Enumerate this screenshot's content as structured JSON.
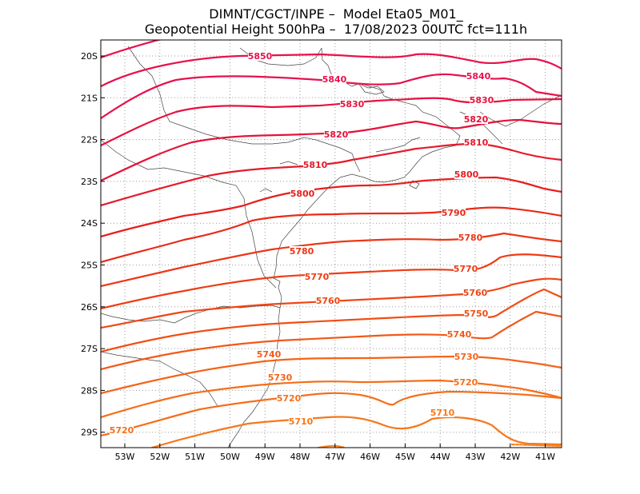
{
  "title": {
    "line1": "DIMNT/CGCT/INPE –  Model Eta05_M01_",
    "line2": "Geopotential Height 500hPa –  17/08/2023 00UTC fct=111h"
  },
  "map": {
    "lat_labels": [
      "20S",
      "21S",
      "22S",
      "23S",
      "24S",
      "25S",
      "26S",
      "27S",
      "28S",
      "29S"
    ],
    "lon_labels": [
      "53W",
      "52W",
      "51W",
      "50W",
      "49W",
      "48W",
      "47W",
      "46W",
      "45W",
      "44W",
      "43W",
      "42W",
      "41W"
    ]
  },
  "contour_colors": {
    "5850": "#e8114d",
    "5840": "#e8114d",
    "5830": "#e8113f",
    "5820": "#e51238",
    "5810": "#e51a2a",
    "5800": "#e81e1e",
    "5790": "#ea2a18",
    "5780": "#ec3616",
    "5770": "#ee3c14",
    "5760": "#ef4614",
    "5750": "#f14e14",
    "5740": "#f25818",
    "5730": "#f46418",
    "5720": "#f56e1a",
    "5710": "#f6781c",
    "5700": "#f8841e"
  },
  "contour_labels": [
    {
      "text": "5850",
      "level": "5850"
    },
    {
      "text": "5840",
      "level": "5840"
    },
    {
      "text": "5840",
      "level": "5840"
    },
    {
      "text": "5830",
      "level": "5830"
    },
    {
      "text": "5830",
      "level": "5830"
    },
    {
      "text": "5820",
      "level": "5820"
    },
    {
      "text": "5820",
      "level": "5820"
    },
    {
      "text": "5810",
      "level": "5810"
    },
    {
      "text": "5810",
      "level": "5810"
    },
    {
      "text": "5800",
      "level": "5800"
    },
    {
      "text": "5800",
      "level": "5800"
    },
    {
      "text": "5790",
      "level": "5790"
    },
    {
      "text": "5780",
      "level": "5780"
    },
    {
      "text": "5780",
      "level": "5780"
    },
    {
      "text": "5770",
      "level": "5770"
    },
    {
      "text": "5770",
      "level": "5770"
    },
    {
      "text": "5760",
      "level": "5760"
    },
    {
      "text": "5760",
      "level": "5760"
    },
    {
      "text": "5750",
      "level": "5750"
    },
    {
      "text": "5740",
      "level": "5740"
    },
    {
      "text": "5740",
      "level": "5740"
    },
    {
      "text": "5730",
      "level": "5730"
    },
    {
      "text": "5730",
      "level": "5730"
    },
    {
      "text": "5720",
      "level": "5720"
    },
    {
      "text": "5720",
      "level": "5720"
    },
    {
      "text": "5720",
      "level": "5720"
    },
    {
      "text": "5710",
      "level": "5710"
    },
    {
      "text": "5710",
      "level": "5710"
    }
  ]
}
